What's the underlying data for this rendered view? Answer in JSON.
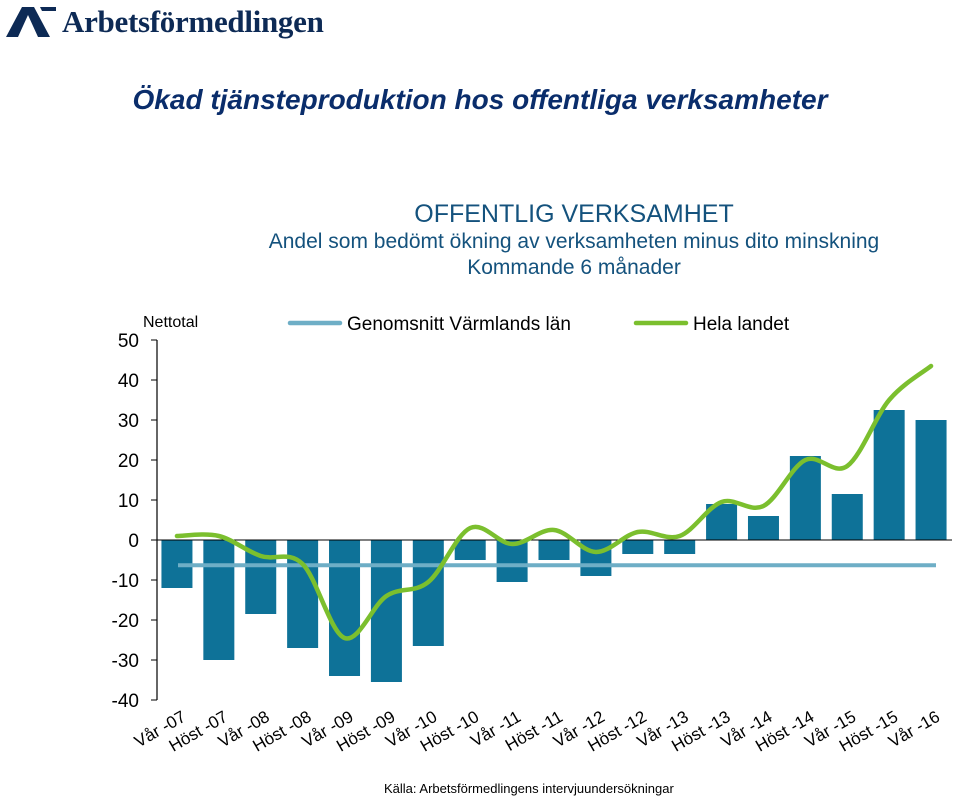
{
  "logo": {
    "text": "Arbetsförmedlingen",
    "icon": "af-chevron-logo-icon",
    "color": "#0d2a55"
  },
  "page_title": "Ökad tjänsteproduktion hos offentliga verksamheter",
  "chart_header": {
    "line1": "OFFENTLIG VERKSAMHET",
    "line2": "Andel som bedömt ökning av verksamheten minus dito minskning",
    "line3": "Kommande 6 månader"
  },
  "source": "Källa: Arbetsförmedlingens intervjuundersökningar",
  "chart_data": {
    "type": "bar",
    "ylabel": "Nettotal",
    "ylim": [
      -40,
      50
    ],
    "yticks": [
      -40,
      -30,
      -20,
      -10,
      0,
      10,
      20,
      30,
      40,
      50
    ],
    "grid": false,
    "legend_placement": "top",
    "categories": [
      "Vår -07",
      "Höst -07",
      "Vår -08",
      "Höst -08",
      "Vår -09",
      "Höst -09",
      "Vår -10",
      "Höst -10",
      "Vår -11",
      "Höst -11",
      "Vår -12",
      "Höst -12",
      "Vår -13",
      "Höst -13",
      "Vår -14",
      "Höst -14",
      "Vår -15",
      "Höst -15",
      "Vår -16"
    ],
    "values": [
      -12,
      -30,
      -18.5,
      -27,
      -34,
      -35.5,
      -26.5,
      -5,
      -10.5,
      -5,
      -9,
      -3.5,
      -3.5,
      9,
      6,
      21,
      11.5,
      32.5,
      30
    ],
    "series": [
      {
        "name": "Genomsnitt Värmlands län",
        "type": "line",
        "color": "#6eaec6",
        "values": [
          -6.3,
          -6.3,
          -6.3,
          -6.3,
          -6.3,
          -6.3,
          -6.3,
          -6.3,
          -6.3,
          -6.3,
          -6.3,
          -6.3,
          -6.3,
          -6.3,
          -6.3,
          -6.3,
          -6.3,
          -6.3,
          -6.3
        ]
      },
      {
        "name": "Hela landet",
        "type": "line",
        "color": "#7bbf2e",
        "values": [
          1,
          1,
          -4,
          -6,
          -24.5,
          -14,
          -10.5,
          3,
          -1,
          2.5,
          -3,
          2,
          1,
          9.5,
          8.5,
          20,
          18.5,
          35,
          43.5
        ]
      }
    ],
    "bar_color": "#0e7298"
  }
}
